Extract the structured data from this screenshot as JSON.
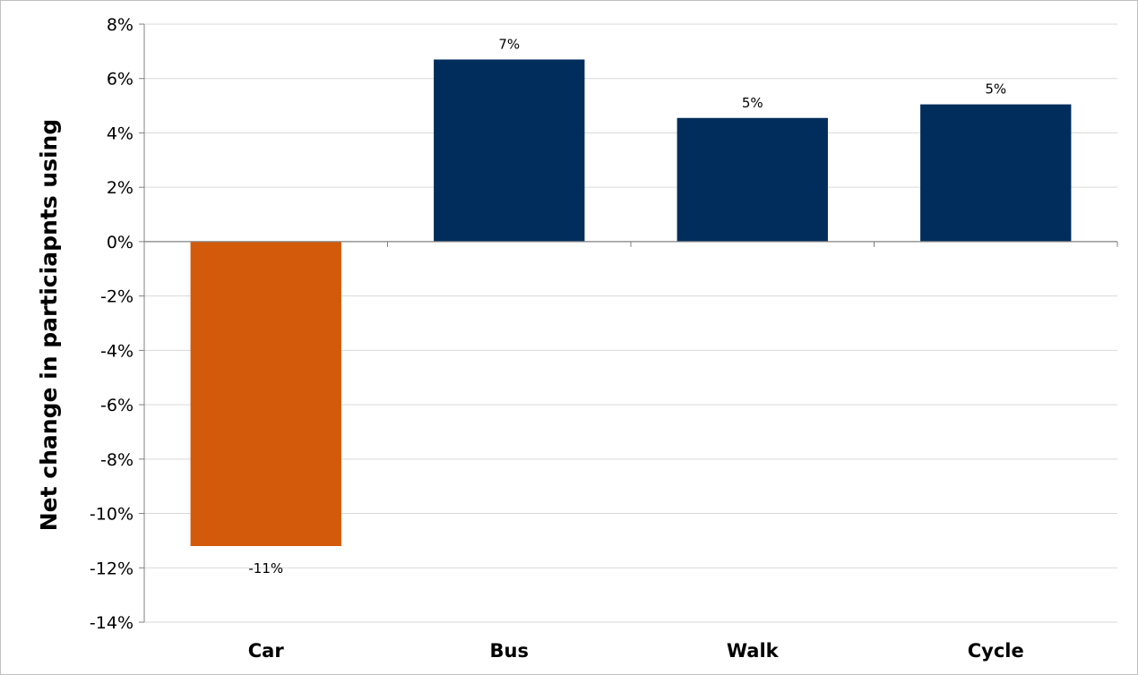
{
  "chart_data": {
    "type": "bar",
    "title": "",
    "xlabel": "",
    "ylabel": "Net change in particiapnts using",
    "categories": [
      "Car",
      "Bus",
      "Walk",
      "Cycle"
    ],
    "values": [
      -11.2,
      6.7,
      4.55,
      5.05
    ],
    "data_labels": [
      "-11%",
      "7%",
      "5%",
      "5%"
    ],
    "ylim": [
      -14,
      8
    ],
    "ytick_step": 2,
    "yticks": [
      "8%",
      "6%",
      "4%",
      "2%",
      "0%",
      "-2%",
      "-4%",
      "-6%",
      "-8%",
      "-10%",
      "-12%",
      "-14%"
    ],
    "grid": true,
    "legend": "none",
    "colors": {
      "positive": "#002d5c",
      "negative": "#d35a0a",
      "grid": "#d9d9d9",
      "axis": "#808080"
    }
  }
}
